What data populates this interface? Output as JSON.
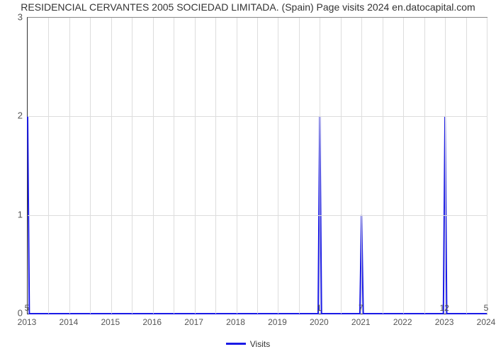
{
  "chart": {
    "type": "line",
    "title": "RESIDENCIAL CERVANTES 2005 SOCIEDAD LIMITADA. (Spain) Page visits 2024 en.datocapital.com",
    "title_fontsize": 14,
    "title_color": "#333333",
    "background_color": "#ffffff",
    "plot_border_color_main": "#333333",
    "plot_border_color_light": "#888888",
    "grid_color": "#dddddd",
    "line_color": "#1a1ae6",
    "line_width": 2,
    "legend": {
      "label": "Visits",
      "position": "bottom-center",
      "swatch_color": "#1a1ae6"
    },
    "yaxis": {
      "lim": [
        0,
        3
      ],
      "ticks": [
        0,
        1,
        2,
        3
      ],
      "label_fontsize": 13,
      "label_color": "#555555"
    },
    "xaxis": {
      "categories": [
        "2013",
        "2014",
        "2015",
        "2016",
        "2017",
        "2018",
        "2019",
        "2020",
        "2021",
        "2022",
        "2023",
        "2024"
      ],
      "label_fontsize": 12,
      "label_color": "#555555",
      "minor_grid_per_major": 1
    },
    "series": {
      "name": "Visits",
      "shape": "spike",
      "points": [
        {
          "x_index": 0,
          "value": 2,
          "half_width": 0.04,
          "falling_only": true,
          "label": "5"
        },
        {
          "x_index": 1,
          "value": 0,
          "half_width": 0.04,
          "label": ""
        },
        {
          "x_index": 2,
          "value": 0,
          "half_width": 0.04,
          "label": ""
        },
        {
          "x_index": 3,
          "value": 0,
          "half_width": 0.04,
          "label": ""
        },
        {
          "x_index": 4,
          "value": 0,
          "half_width": 0.04,
          "label": ""
        },
        {
          "x_index": 5,
          "value": 0,
          "half_width": 0.04,
          "label": ""
        },
        {
          "x_index": 6,
          "value": 0,
          "half_width": 0.04,
          "label": ""
        },
        {
          "x_index": 7,
          "value": 2,
          "half_width": 0.04,
          "label": "1"
        },
        {
          "x_index": 8,
          "value": 1,
          "half_width": 0.04,
          "label": "7"
        },
        {
          "x_index": 9,
          "value": 0,
          "half_width": 0.04,
          "label": ""
        },
        {
          "x_index": 10,
          "value": 2,
          "half_width": 0.04,
          "label": "12"
        },
        {
          "x_index": 11,
          "value": 0,
          "half_width": 0.04,
          "label": "5"
        }
      ]
    }
  }
}
